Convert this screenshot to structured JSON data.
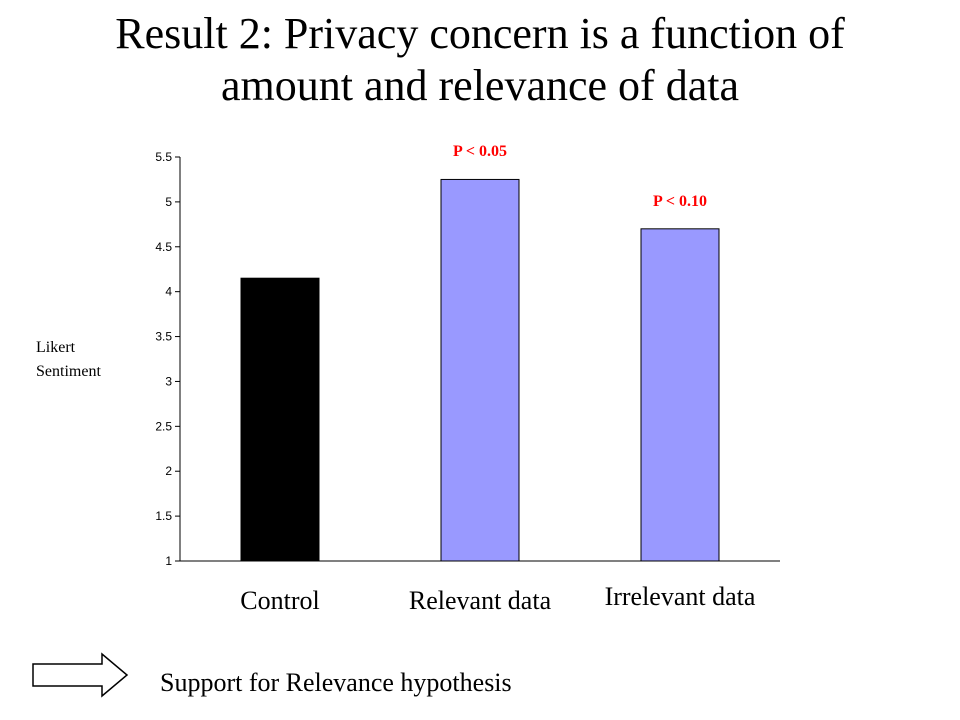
{
  "title": {
    "line1": "Result 2: Privacy concern is a function of",
    "line2": "amount and relevance of data"
  },
  "footer": {
    "support_text": "Support for Relevance hypothesis",
    "arrow_icon": "right-arrow-outline-icon"
  },
  "chart_data": {
    "type": "bar",
    "title": "Result 2: Privacy concern is a function of amount and relevance of data",
    "categories": [
      "Control",
      "Relevant data",
      "Irrelevant data"
    ],
    "values": [
      4.15,
      5.25,
      4.7
    ],
    "colors": [
      "#000000",
      "#9999ff",
      "#9999ff"
    ],
    "ylabel": [
      "Likert",
      "Sentiment"
    ],
    "xlabel": "",
    "ylim": [
      1,
      5.5
    ],
    "yticks": [
      "1",
      "1.5",
      "2",
      "2.5",
      "3",
      "3.5",
      "4",
      "4.5",
      "5",
      "5.5"
    ],
    "grid": false,
    "annotations": [
      {
        "category": "Relevant data",
        "text": "P < 0.05"
      },
      {
        "category": "Irrelevant data",
        "text": "P < 0.10"
      }
    ],
    "annotation_color": "#ff0000"
  }
}
